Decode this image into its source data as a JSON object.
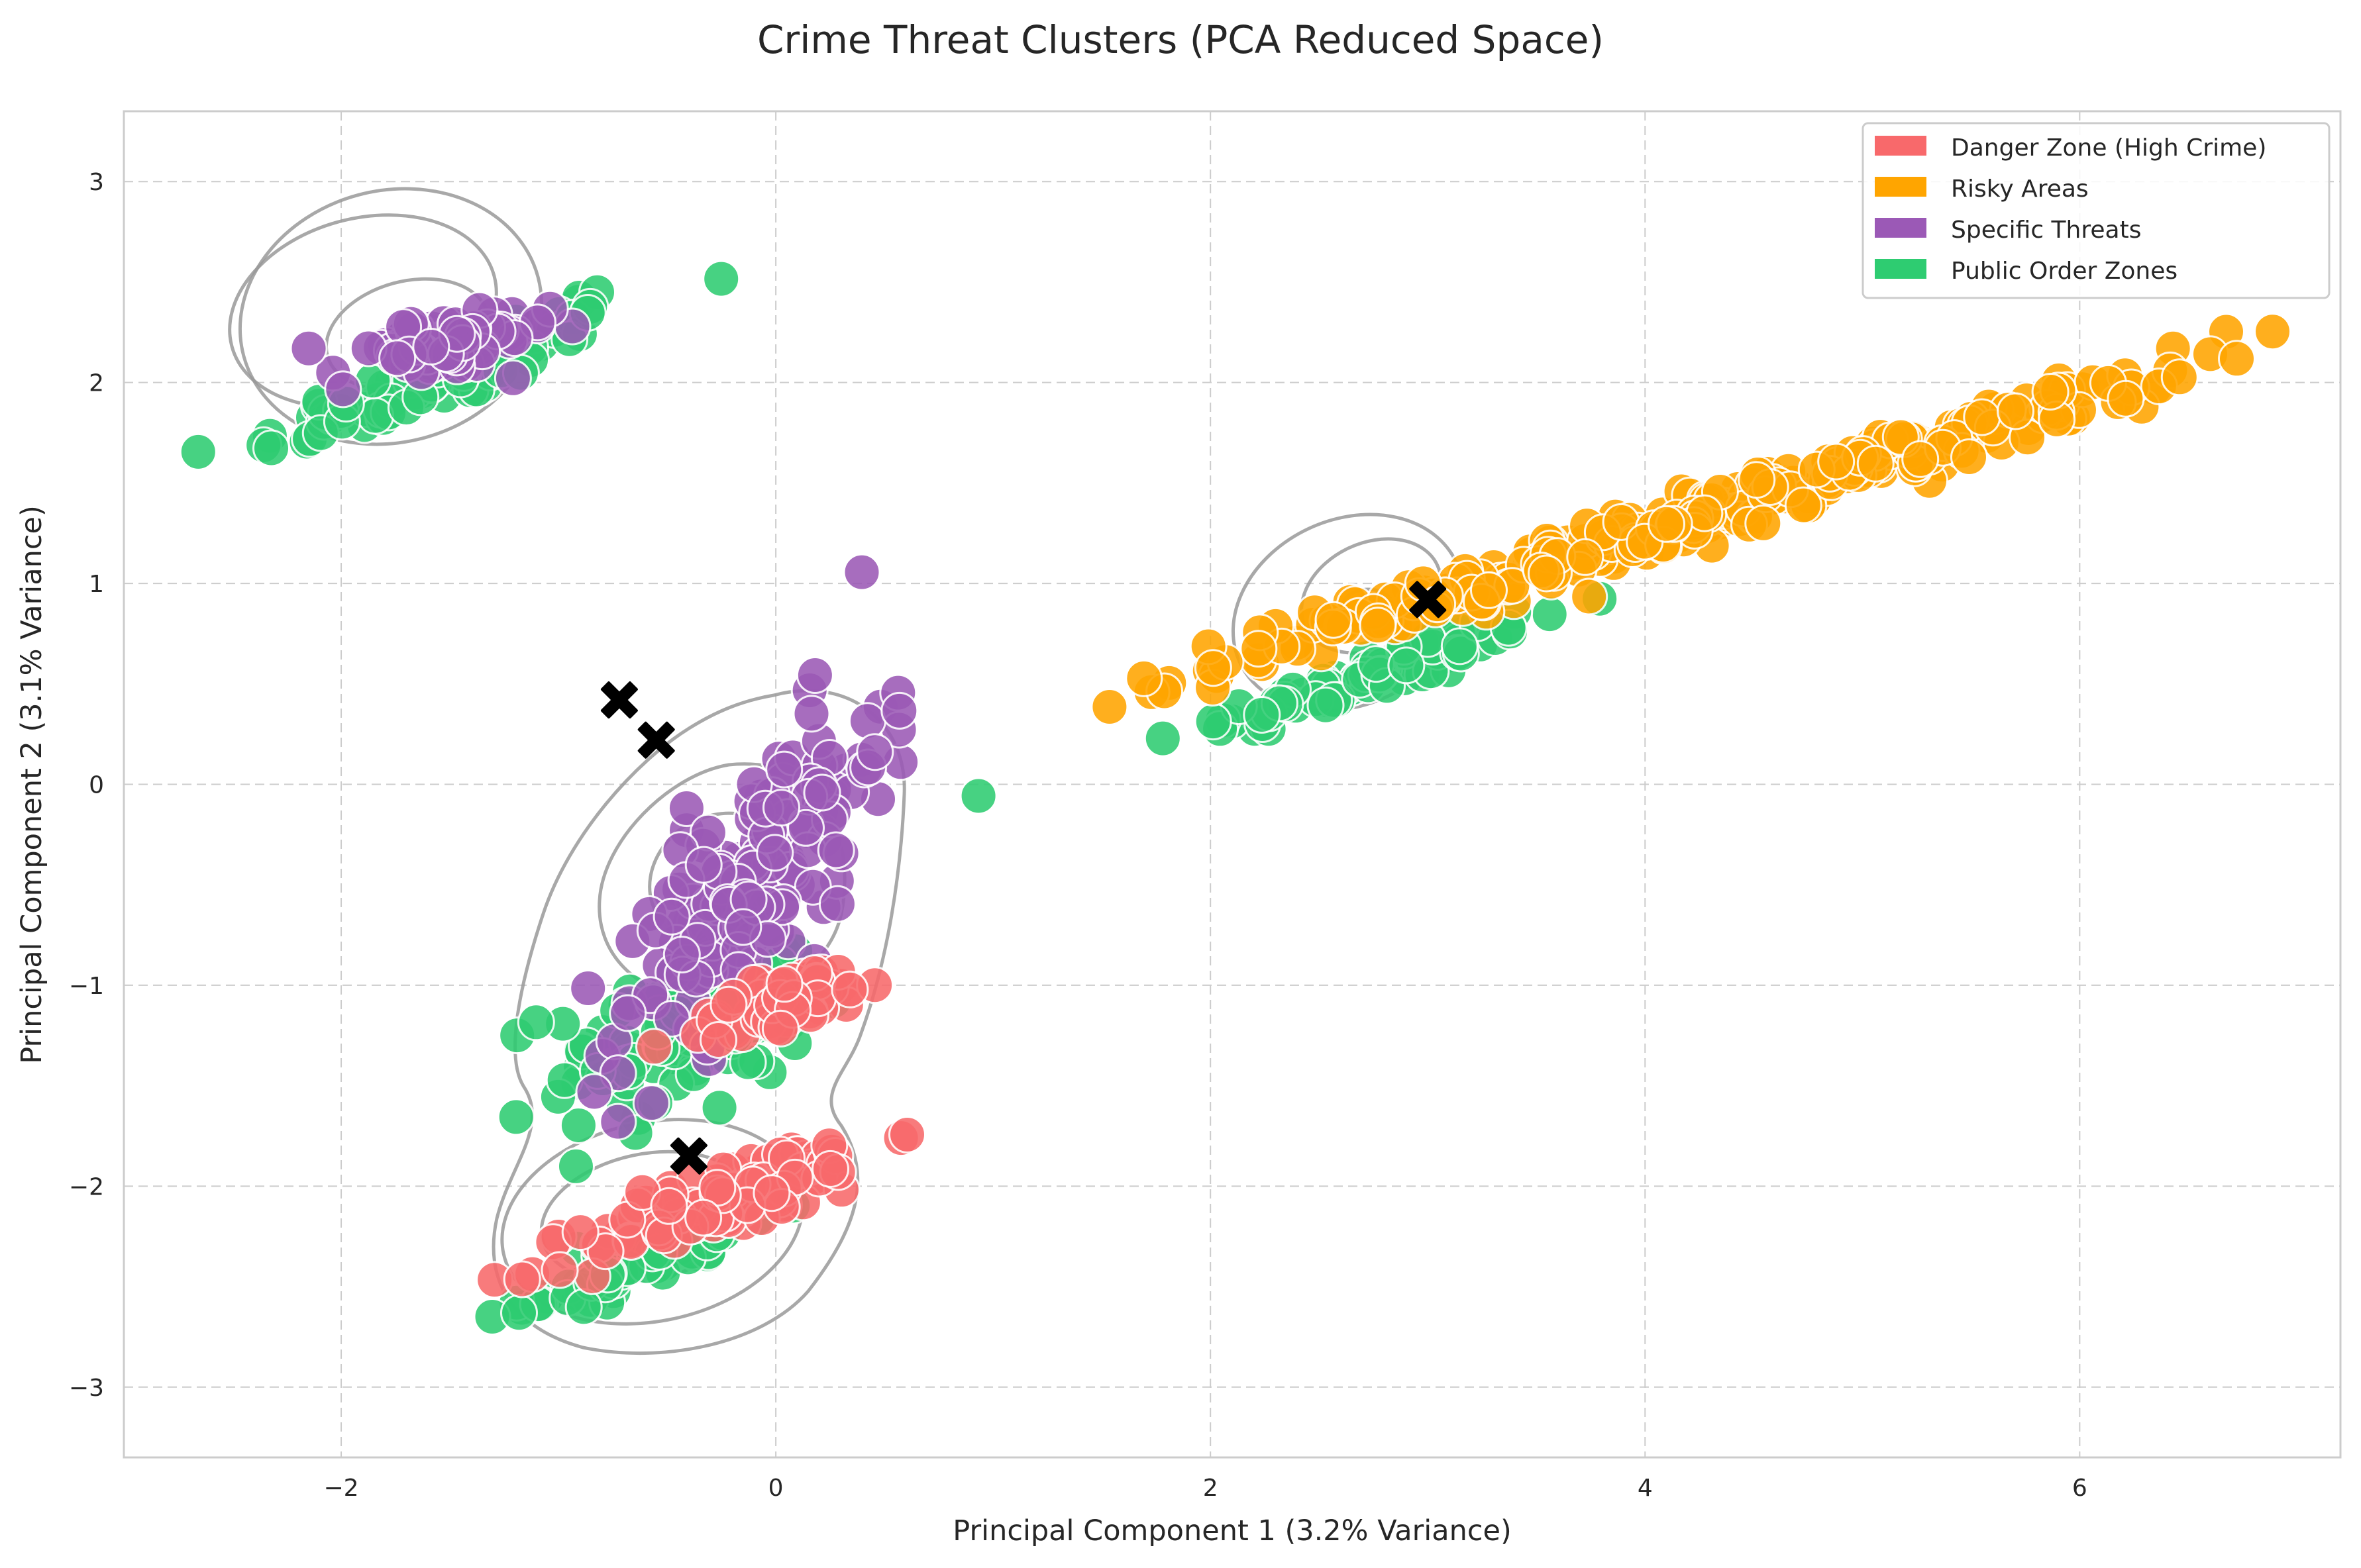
{
  "chart_data": {
    "type": "scatter",
    "title": "Crime Threat Clusters (PCA Reduced Space)",
    "xlabel": "Principal Component 1 (3.2% Variance)",
    "ylabel": "Principal Component 2 (3.1% Variance)",
    "xlim": [
      -3.0,
      7.2
    ],
    "ylim": [
      -3.35,
      3.35
    ],
    "xticks": [
      -2,
      0,
      2,
      4,
      6
    ],
    "yticks": [
      -3,
      -2,
      -1,
      0,
      1,
      2,
      3
    ],
    "xtick_labels": [
      "−2",
      "0",
      "2",
      "4",
      "6"
    ],
    "ytick_labels": [
      "−3",
      "−2",
      "−1",
      "0",
      "1",
      "2",
      "3"
    ],
    "grid": true,
    "legend_position": "top-right",
    "series": [
      {
        "name": "Danger Zone (High Crime)",
        "color": "#f8696b",
        "clusters": [
          {
            "center": [
              -0.2,
              -2.05
            ],
            "spread": [
              0.35,
              0.09
            ],
            "slope": 0.4,
            "count": 110
          },
          {
            "center": [
              0.05,
              -1.08
            ],
            "spread": [
              0.25,
              0.07
            ],
            "slope": 0.35,
            "count": 55
          }
        ]
      },
      {
        "name": "Risky Areas",
        "color": "#ffa500",
        "clusters": [
          {
            "center": [
              4.3,
              1.35
            ],
            "spread": [
              1.1,
              0.06
            ],
            "slope": 0.33,
            "count": 330
          }
        ]
      },
      {
        "name": "Specific Threats",
        "color": "#9b59b6",
        "clusters": [
          {
            "center": [
              -1.55,
              2.18
            ],
            "spread": [
              0.25,
              0.07
            ],
            "slope": 0.15,
            "count": 80
          },
          {
            "center": [
              -0.1,
              -0.45
            ],
            "spread": [
              0.3,
              0.28
            ],
            "slope": 1.1,
            "count": 170
          }
        ]
      },
      {
        "name": "Public Order Zones",
        "color": "#2ecc71",
        "clusters": [
          {
            "center": [
              -1.5,
              2.05
            ],
            "spread": [
              0.45,
              0.08
            ],
            "slope": 0.42,
            "count": 90
          },
          {
            "center": [
              2.75,
              0.55
            ],
            "spread": [
              0.45,
              0.06
            ],
            "slope": 0.35,
            "count": 85
          },
          {
            "center": [
              -0.45,
              -1.25
            ],
            "spread": [
              0.3,
              0.22
            ],
            "slope": 0.3,
            "count": 100
          },
          {
            "center": [
              -0.55,
              -2.35
            ],
            "spread": [
              0.3,
              0.06
            ],
            "slope": 0.4,
            "count": 60
          }
        ]
      }
    ],
    "centroids": [
      [
        -0.72,
        0.42
      ],
      [
        -0.55,
        0.22
      ],
      [
        3.0,
        0.92
      ],
      [
        -0.4,
        -1.85
      ]
    ],
    "legend": [
      "Danger Zone (High Crime)",
      "Risky Areas",
      "Specific Threats",
      "Public Order Zones"
    ]
  }
}
